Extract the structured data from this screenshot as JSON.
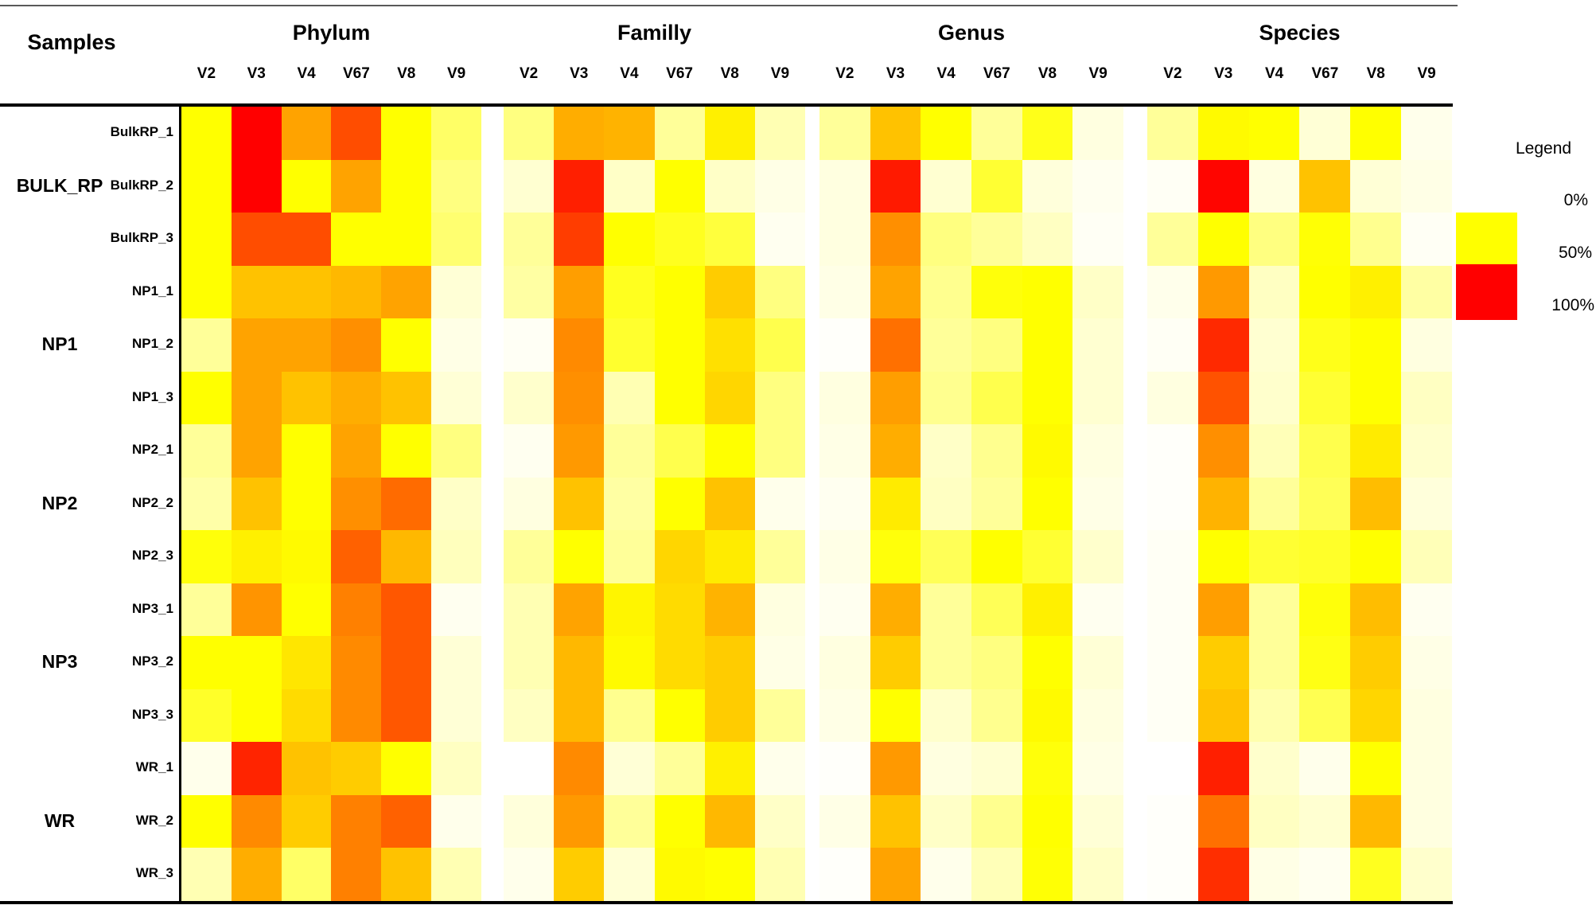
{
  "header": {
    "samples_label": "Samples",
    "level_groups": [
      "Phylum",
      "Familly",
      "Genus",
      "Species"
    ],
    "region_columns": [
      "V2",
      "V3",
      "V4",
      "V67",
      "V8",
      "V9"
    ]
  },
  "sample_groups": [
    {
      "label": "BULK_RP",
      "samples": [
        "BulkRP_1",
        "BulkRP_2",
        "BulkRP_3"
      ]
    },
    {
      "label": "NP1",
      "samples": [
        "NP1_1",
        "NP1_2",
        "NP1_3"
      ]
    },
    {
      "label": "NP2",
      "samples": [
        "NP2_1",
        "NP2_2",
        "NP2_3"
      ]
    },
    {
      "label": "NP3",
      "samples": [
        "NP3_1",
        "NP3_2",
        "NP3_3"
      ]
    },
    {
      "label": "WR",
      "samples": [
        "WR_1",
        "WR_2",
        "WR_3"
      ]
    }
  ],
  "legend": {
    "title": "Legend",
    "entries": [
      {
        "label": "0%",
        "value": 0,
        "color": "#FFFFFF"
      },
      {
        "label": "50%",
        "value": 50,
        "color": "#FFFF00"
      },
      {
        "label": "100%",
        "value": 100,
        "color": "#FF0000"
      }
    ]
  },
  "chart_data": {
    "type": "heatmap",
    "title": "",
    "unit": "percent",
    "color_scale": {
      "0": "#FFFFFF",
      "50": "#FFFF00",
      "100": "#FF0000"
    },
    "column_groups": [
      "Phylum",
      "Familly",
      "Genus",
      "Species"
    ],
    "columns": [
      "V2",
      "V3",
      "V4",
      "V67",
      "V8",
      "V9"
    ],
    "rows": [
      {
        "sample": "BulkRP_1",
        "Phylum": [
          50,
          100,
          68,
          85,
          50,
          30
        ],
        "Familly": [
          25,
          66,
          65,
          20,
          53,
          15
        ],
        "Genus": [
          20,
          62,
          50,
          20,
          45,
          6
        ],
        "Species": [
          20,
          51,
          50,
          8,
          50,
          4
        ]
      },
      {
        "sample": "BulkRP_2",
        "Phylum": [
          50,
          100,
          50,
          68,
          50,
          25
        ],
        "Familly": [
          9,
          94,
          11,
          50,
          11,
          5
        ],
        "Genus": [
          6,
          95,
          9,
          40,
          7,
          3
        ],
        "Species": [
          2,
          99,
          6,
          62,
          8,
          5
        ]
      },
      {
        "sample": "BulkRP_3",
        "Phylum": [
          50,
          85,
          85,
          50,
          50,
          28
        ],
        "Familly": [
          20,
          88,
          50,
          44,
          38,
          3
        ],
        "Genus": [
          6,
          72,
          25,
          20,
          12,
          2
        ],
        "Species": [
          20,
          50,
          25,
          49,
          22,
          2
        ]
      },
      {
        "sample": "NP1_1",
        "Phylum": [
          50,
          62,
          62,
          64,
          68,
          8
        ],
        "Familly": [
          18,
          69,
          44,
          50,
          60,
          25
        ],
        "Genus": [
          5,
          68,
          22,
          48,
          50,
          11
        ],
        "Species": [
          4,
          70,
          12,
          50,
          53,
          18
        ]
      },
      {
        "sample": "NP1_2",
        "Phylum": [
          20,
          68,
          68,
          72,
          50,
          5
        ],
        "Familly": [
          2,
          73,
          41,
          50,
          56,
          35
        ],
        "Genus": [
          1,
          78,
          20,
          25,
          50,
          9
        ],
        "Species": [
          2,
          92,
          9,
          45,
          50,
          6
        ]
      },
      {
        "sample": "NP1_3",
        "Phylum": [
          50,
          68,
          62,
          66,
          62,
          8
        ],
        "Familly": [
          10,
          72,
          15,
          50,
          58,
          25
        ],
        "Genus": [
          6,
          69,
          22,
          35,
          50,
          9
        ],
        "Species": [
          6,
          84,
          10,
          40,
          50,
          12
        ]
      },
      {
        "sample": "NP2_1",
        "Phylum": [
          20,
          68,
          50,
          68,
          50,
          25
        ],
        "Familly": [
          3,
          70,
          20,
          35,
          50,
          25
        ],
        "Genus": [
          5,
          66,
          11,
          22,
          51,
          6
        ],
        "Species": [
          1,
          72,
          14,
          35,
          54,
          10
        ]
      },
      {
        "sample": "NP2_2",
        "Phylum": [
          17,
          62,
          50,
          72,
          79,
          11
        ],
        "Familly": [
          6,
          62,
          18,
          50,
          62,
          4
        ],
        "Genus": [
          3,
          54,
          12,
          20,
          50,
          5
        ],
        "Species": [
          1,
          65,
          20,
          33,
          63,
          7
        ]
      },
      {
        "sample": "NP2_3",
        "Phylum": [
          48,
          53,
          51,
          81,
          64,
          13
        ],
        "Familly": [
          20,
          50,
          20,
          58,
          54,
          20
        ],
        "Genus": [
          5,
          48,
          33,
          50,
          40,
          10
        ],
        "Species": [
          2,
          50,
          40,
          42,
          50,
          14
        ]
      },
      {
        "sample": "NP3_1",
        "Phylum": [
          20,
          71,
          50,
          75,
          83,
          3
        ],
        "Familly": [
          15,
          68,
          52,
          57,
          65,
          6
        ],
        "Genus": [
          3,
          66,
          20,
          33,
          53,
          3
        ],
        "Species": [
          2,
          69,
          20,
          48,
          63,
          3
        ]
      },
      {
        "sample": "NP3_2",
        "Phylum": [
          50,
          50,
          55,
          73,
          83,
          8
        ],
        "Familly": [
          15,
          64,
          51,
          57,
          60,
          5
        ],
        "Genus": [
          6,
          60,
          20,
          25,
          50,
          8
        ],
        "Species": [
          2,
          60,
          20,
          46,
          60,
          5
        ]
      },
      {
        "sample": "NP3_3",
        "Phylum": [
          42,
          50,
          57,
          73,
          83,
          8
        ],
        "Familly": [
          12,
          64,
          22,
          50,
          60,
          20
        ],
        "Genus": [
          5,
          50,
          10,
          22,
          51,
          6
        ],
        "Species": [
          2,
          62,
          16,
          34,
          58,
          6
        ]
      },
      {
        "sample": "WR_1",
        "Phylum": [
          4,
          93,
          62,
          60,
          50,
          12
        ],
        "Familly": [
          0,
          73,
          8,
          20,
          53,
          4
        ],
        "Genus": [
          1,
          70,
          6,
          9,
          48,
          5
        ],
        "Species": [
          0,
          94,
          10,
          4,
          50,
          6
        ]
      },
      {
        "sample": "WR_2",
        "Phylum": [
          50,
          73,
          60,
          75,
          81,
          4
        ],
        "Familly": [
          7,
          70,
          20,
          50,
          64,
          11
        ],
        "Genus": [
          5,
          62,
          11,
          22,
          50,
          8
        ],
        "Species": [
          1,
          78,
          12,
          9,
          64,
          6
        ]
      },
      {
        "sample": "WR_3",
        "Phylum": [
          15,
          66,
          30,
          75,
          62,
          15
        ],
        "Familly": [
          4,
          60,
          8,
          51,
          50,
          15
        ],
        "Genus": [
          1,
          68,
          4,
          14,
          49,
          11
        ],
        "Species": [
          1,
          91,
          5,
          3,
          44,
          10
        ]
      }
    ]
  }
}
